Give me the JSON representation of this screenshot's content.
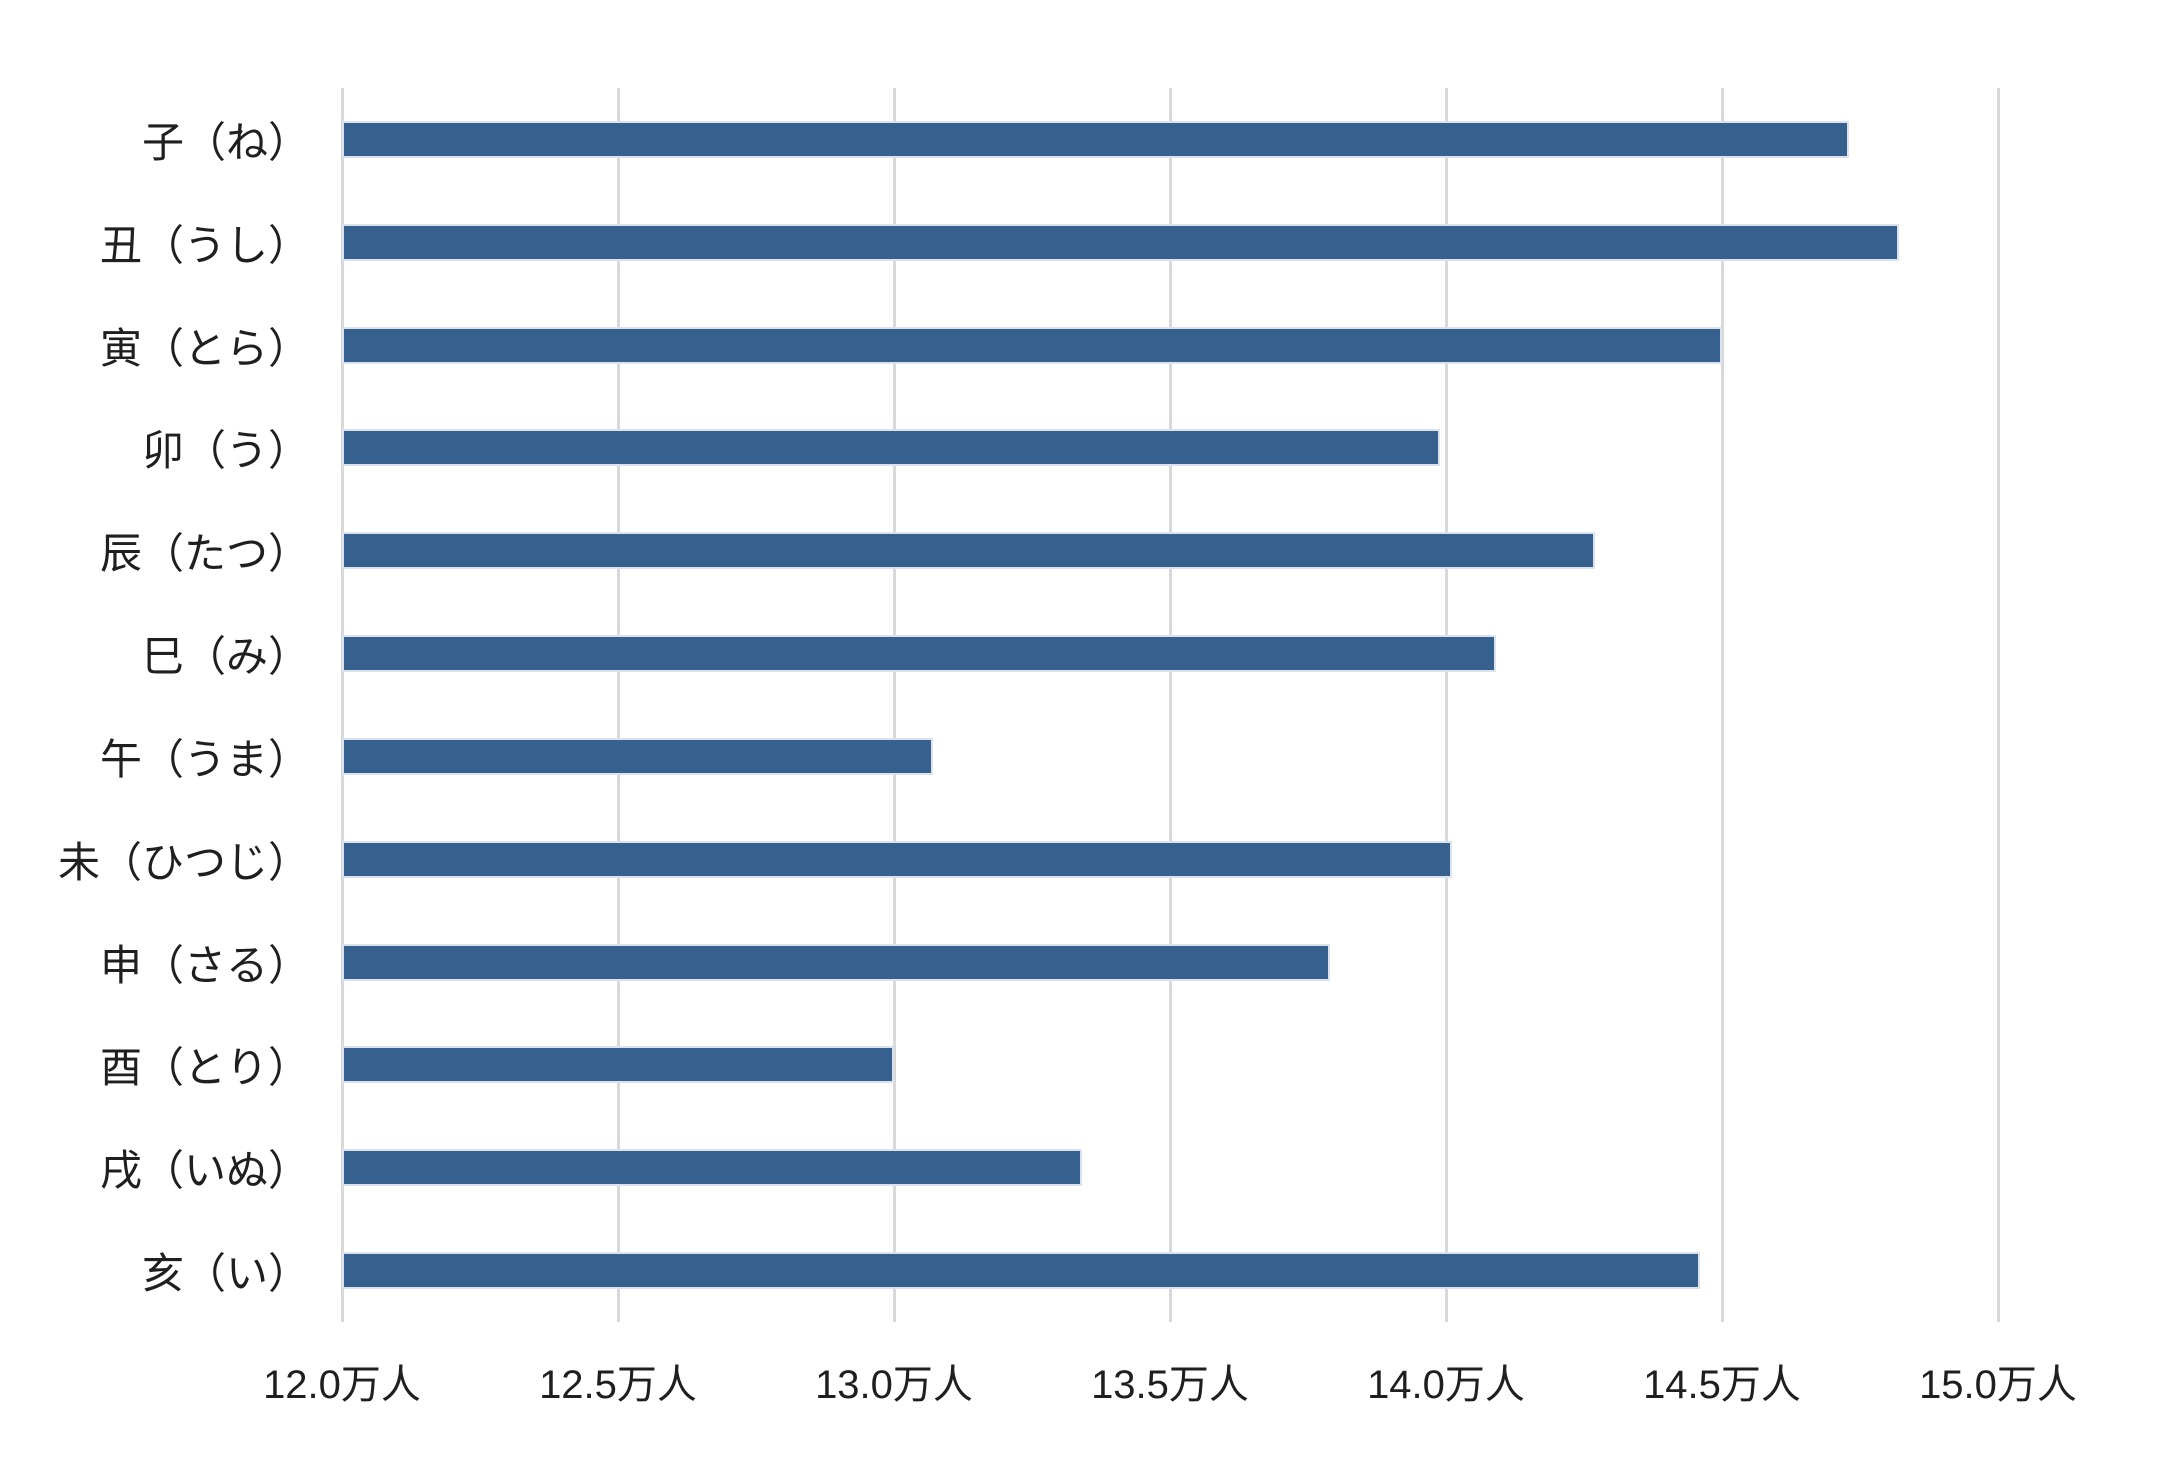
{
  "chart_data": {
    "type": "bar",
    "orientation": "horizontal",
    "title": "",
    "xlabel": "",
    "ylabel": "",
    "unit": "万人",
    "categories": [
      "子（ね）",
      "丑（うし）",
      "寅（とら）",
      "卯（う）",
      "辰（たつ）",
      "巳（み）",
      "午（うま）",
      "未（ひつじ）",
      "申（さる）",
      "酉（とり）",
      "戌（いぬ）",
      "亥（い）"
    ],
    "values": [
      14.73,
      14.82,
      14.5,
      13.99,
      14.27,
      14.09,
      13.07,
      14.01,
      13.79,
      13.0,
      13.34,
      14.46
    ],
    "x_ticks": [
      "12.0万人",
      "12.5万人",
      "13.0万人",
      "13.5万人",
      "14.0万人",
      "14.5万人",
      "15.0万人"
    ],
    "x_tick_values": [
      12.0,
      12.5,
      13.0,
      13.5,
      14.0,
      14.5,
      15.0
    ],
    "xlim": [
      12.0,
      15.0
    ],
    "grid": true,
    "legend": false,
    "colors": {
      "bar": "#36618E",
      "bar_edge": "#dbe2ec",
      "gridline": "#D9D9D9",
      "text": "#1F1F1F",
      "background": "#FFFFFF"
    }
  }
}
